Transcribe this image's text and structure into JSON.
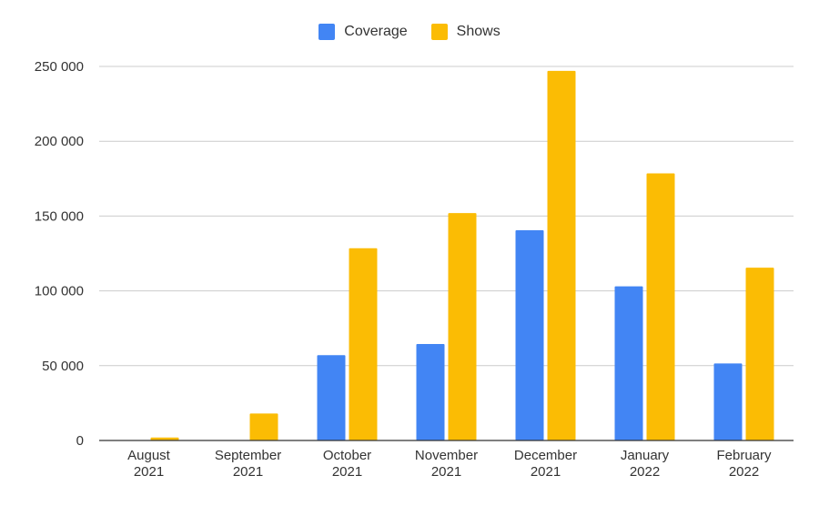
{
  "chart_data": {
    "type": "bar",
    "title": "",
    "xlabel": "",
    "ylabel": "",
    "categories": [
      [
        "August",
        "2021"
      ],
      [
        "September",
        "2021"
      ],
      [
        "October",
        "2021"
      ],
      [
        "November",
        "2021"
      ],
      [
        "December",
        "2021"
      ],
      [
        "January",
        "2022"
      ],
      [
        "February",
        "2022"
      ]
    ],
    "series": [
      {
        "name": "Coverage",
        "color": "#4285f4",
        "values": [
          0,
          0,
          57000,
          64500,
          140500,
          103000,
          51500
        ]
      },
      {
        "name": "Shows",
        "color": "#fbbc04",
        "values": [
          2000,
          18000,
          128500,
          152000,
          247000,
          178500,
          115500
        ]
      }
    ],
    "ylim": [
      0,
      250000
    ],
    "yticks": [
      0,
      50000,
      100000,
      150000,
      200000,
      250000
    ],
    "ytick_labels": [
      "0",
      "50 000",
      "100 000",
      "150 000",
      "200 000",
      "250 000"
    ],
    "grid": true,
    "legend_position": "top-center"
  }
}
